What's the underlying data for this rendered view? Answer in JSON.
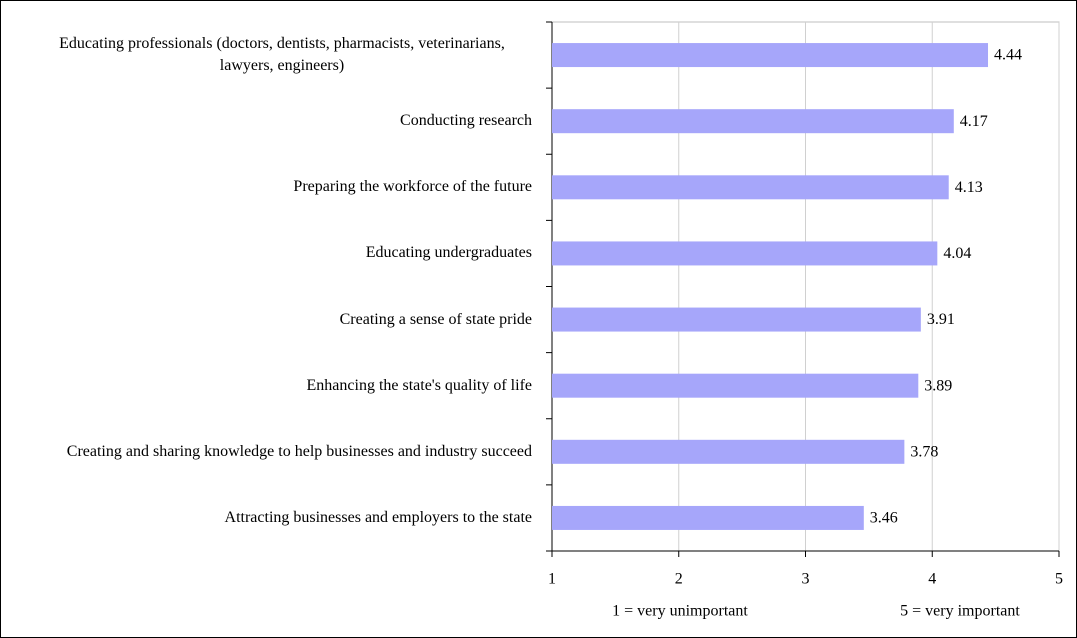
{
  "chart_data": {
    "type": "bar",
    "orientation": "horizontal",
    "categories": [
      "Educating professionals (doctors, dentists, pharmacists, veterinarians, lawyers, engineers)",
      "Conducting research",
      "Preparing the workforce of the future",
      "Educating undergraduates",
      "Creating a sense of state pride",
      "Enhancing the state's quality of life",
      "Creating and sharing knowledge to help businesses and industry succeed",
      "Attracting businesses and employers to the state"
    ],
    "values": [
      4.44,
      4.17,
      4.13,
      4.04,
      3.91,
      3.89,
      3.78,
      3.46
    ],
    "color": "#a6a6fa",
    "xlim": [
      1,
      5
    ],
    "xticks": [
      1,
      2,
      3,
      4,
      5
    ],
    "grid": true,
    "annotations": [
      "1 = very unimportant",
      "5 = very important"
    ]
  }
}
